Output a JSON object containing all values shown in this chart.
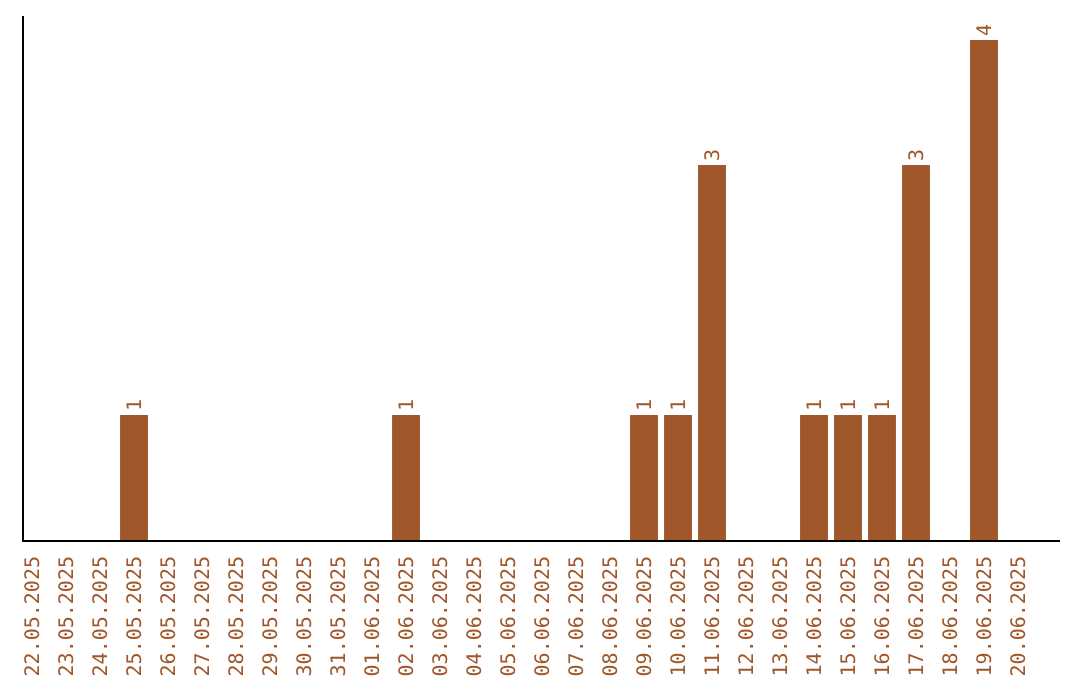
{
  "chart_data": {
    "type": "bar",
    "categories": [
      "22.05.2025",
      "23.05.2025",
      "24.05.2025",
      "25.05.2025",
      "26.05.2025",
      "27.05.2025",
      "28.05.2025",
      "29.05.2025",
      "30.05.2025",
      "31.05.2025",
      "01.06.2025",
      "02.06.2025",
      "03.06.2025",
      "04.06.2025",
      "05.06.2025",
      "06.06.2025",
      "07.06.2025",
      "08.06.2025",
      "09.06.2025",
      "10.06.2025",
      "11.06.2025",
      "12.06.2025",
      "13.06.2025",
      "14.06.2025",
      "15.06.2025",
      "16.06.2025",
      "17.06.2025",
      "18.06.2025",
      "19.06.2025",
      "20.06.2025"
    ],
    "values": [
      0,
      0,
      0,
      1,
      0,
      0,
      0,
      0,
      0,
      0,
      0,
      1,
      0,
      0,
      0,
      0,
      0,
      0,
      1,
      1,
      3,
      0,
      0,
      1,
      1,
      1,
      3,
      0,
      4,
      0
    ],
    "value_labels": [
      null,
      null,
      null,
      "1",
      null,
      null,
      null,
      null,
      null,
      null,
      null,
      "1",
      null,
      null,
      null,
      null,
      null,
      null,
      "1",
      "1",
      "3",
      null,
      null,
      "1",
      "1",
      "1",
      "3",
      null,
      "4",
      null
    ],
    "color": "#a0572a"
  }
}
